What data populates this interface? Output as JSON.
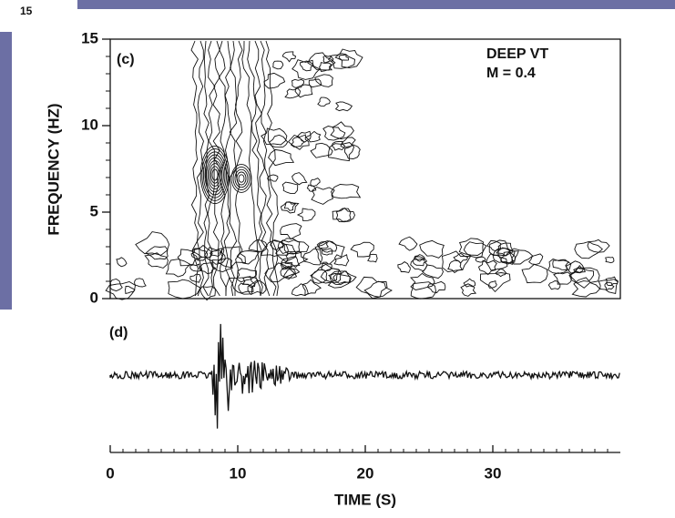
{
  "page_number": "15",
  "charts": [
    {
      "type": "contour",
      "panel_label": "(c)",
      "annotation": [
        "DEEP VT",
        "M = 0.4"
      ],
      "ylabel": "FREQUENCY (HZ)",
      "ylim": [
        0,
        15
      ],
      "yticks": [
        0,
        5,
        10,
        15
      ],
      "xlim": [
        0,
        40
      ]
    },
    {
      "type": "waveform",
      "panel_label": "(d)",
      "xlabel": "TIME (S)",
      "xlim": [
        0,
        40
      ],
      "xticks": [
        0,
        10,
        20,
        30
      ]
    }
  ]
}
